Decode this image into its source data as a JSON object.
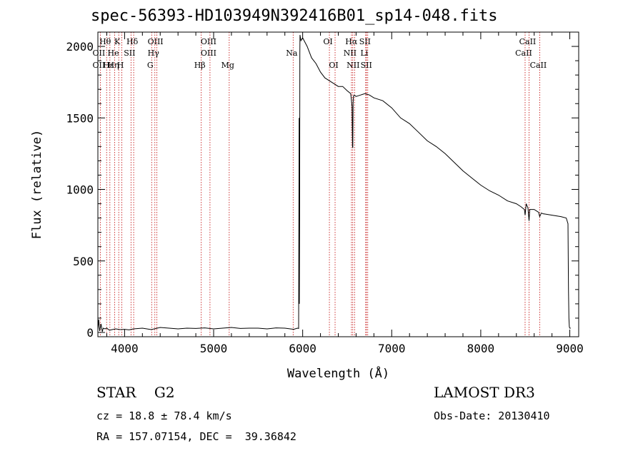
{
  "chart_data": {
    "type": "line",
    "title": "spec-56393-HD103949N392416B01_sp14-048.fits",
    "xlabel": "Wavelength (Å)",
    "ylabel": "Flux (relative)",
    "xlim": [
      3700,
      9100
    ],
    "ylim": [
      -30,
      2100
    ],
    "x_ticks": [
      4000,
      5000,
      6000,
      7000,
      8000,
      9000
    ],
    "y_ticks": [
      0,
      500,
      1000,
      1500,
      2000
    ],
    "grid": false,
    "series": [
      {
        "x": [
          3700,
          3710,
          3720,
          3735,
          3750,
          3760,
          3780,
          3800,
          3830,
          3860,
          3900,
          3950,
          4000,
          4050,
          4100,
          4200,
          4300,
          4400,
          4500,
          4600,
          4700,
          4800,
          4900,
          5000,
          5100,
          5200,
          5300,
          5400,
          5500,
          5600,
          5700,
          5800,
          5900,
          5940,
          5955,
          5960,
          5963,
          5966,
          5968,
          5970,
          5980,
          6000,
          6050,
          6100,
          6150,
          6200,
          6250,
          6300,
          6350,
          6400,
          6450,
          6500,
          6540,
          6555,
          6560,
          6563,
          6566,
          6570,
          6580,
          6600,
          6650,
          6700,
          6750,
          6800,
          6900,
          7000,
          7100,
          7200,
          7300,
          7400,
          7500,
          7600,
          7700,
          7800,
          7900,
          8000,
          8100,
          8200,
          8300,
          8400,
          8450,
          8490,
          8498,
          8510,
          8530,
          8542,
          8550,
          8600,
          8650,
          8662,
          8680,
          8700,
          8800,
          8900,
          8960,
          8980,
          8985,
          8990,
          8995,
          9000,
          9010
        ],
        "values": [
          20,
          90,
          10,
          60,
          5,
          30,
          25,
          30,
          15,
          20,
          25,
          20,
          22,
          18,
          25,
          30,
          20,
          35,
          30,
          25,
          30,
          28,
          32,
          25,
          30,
          35,
          28,
          30,
          30,
          25,
          32,
          30,
          22,
          30,
          28,
          1500,
          200,
          800,
          1950,
          2080,
          2040,
          2060,
          2000,
          1920,
          1880,
          1820,
          1780,
          1760,
          1740,
          1720,
          1720,
          1690,
          1670,
          1580,
          1300,
          1290,
          1600,
          1650,
          1660,
          1650,
          1660,
          1670,
          1660,
          1640,
          1620,
          1570,
          1500,
          1460,
          1400,
          1340,
          1300,
          1250,
          1190,
          1130,
          1080,
          1030,
          990,
          960,
          920,
          900,
          880,
          860,
          820,
          900,
          870,
          780,
          860,
          860,
          840,
          810,
          835,
          830,
          820,
          810,
          800,
          760,
          300,
          100,
          40,
          30,
          30
        ]
      }
    ],
    "line_markers": [
      {
        "label": "Hθ",
        "x": 3798,
        "row": 1
      },
      {
        "label": "OII",
        "x": 3727,
        "row": 2
      },
      {
        "label": "OII",
        "x": 3727,
        "row": 3
      },
      {
        "label": "Hε",
        "x": 3835,
        "row": 3
      },
      {
        "label": "He",
        "x": 3889,
        "row": 2
      },
      {
        "label": "Hη",
        "x": 3889,
        "row": 3
      },
      {
        "label": "K",
        "x": 3934,
        "row": 1
      },
      {
        "label": "SII",
        "x": 4072,
        "row": 2
      },
      {
        "label": "H",
        "x": 3969,
        "row": 3
      },
      {
        "label": "Hδ",
        "x": 4102,
        "row": 1
      },
      {
        "label": "OIII",
        "x": 4363,
        "row": 1
      },
      {
        "label": "Hγ",
        "x": 4340,
        "row": 2
      },
      {
        "label": "G",
        "x": 4304,
        "row": 3
      },
      {
        "label": "OIII",
        "x": 4959,
        "row": 1
      },
      {
        "label": "OIII",
        "x": 4959,
        "row": 2
      },
      {
        "label": "Hβ",
        "x": 4861,
        "row": 3
      },
      {
        "label": "Mg",
        "x": 5175,
        "row": 3
      },
      {
        "label": "Na",
        "x": 5893,
        "row": 2
      },
      {
        "label": "OI",
        "x": 6300,
        "row": 1
      },
      {
        "label": "OI",
        "x": 6364,
        "row": 3
      },
      {
        "label": "Hα",
        "x": 6563,
        "row": 1
      },
      {
        "label": "SII",
        "x": 6716,
        "row": 1
      },
      {
        "label": "NII",
        "x": 6548,
        "row": 2
      },
      {
        "label": "Li",
        "x": 6708,
        "row": 2
      },
      {
        "label": "NII",
        "x": 6583,
        "row": 3
      },
      {
        "label": "SII",
        "x": 6731,
        "row": 3
      },
      {
        "label": "CaII",
        "x": 8542,
        "row": 1
      },
      {
        "label": "CaII",
        "x": 8498,
        "row": 2
      },
      {
        "label": "CaII",
        "x": 8662,
        "row": 3
      }
    ]
  },
  "info": {
    "class": "STAR    G2",
    "survey": "LAMOST DR3",
    "cz": "cz = 18.8 ± 78.4 km/s",
    "obs_date": "Obs-Date: 20130410",
    "radec": "RA = 157.07154, DEC =  39.36842"
  }
}
